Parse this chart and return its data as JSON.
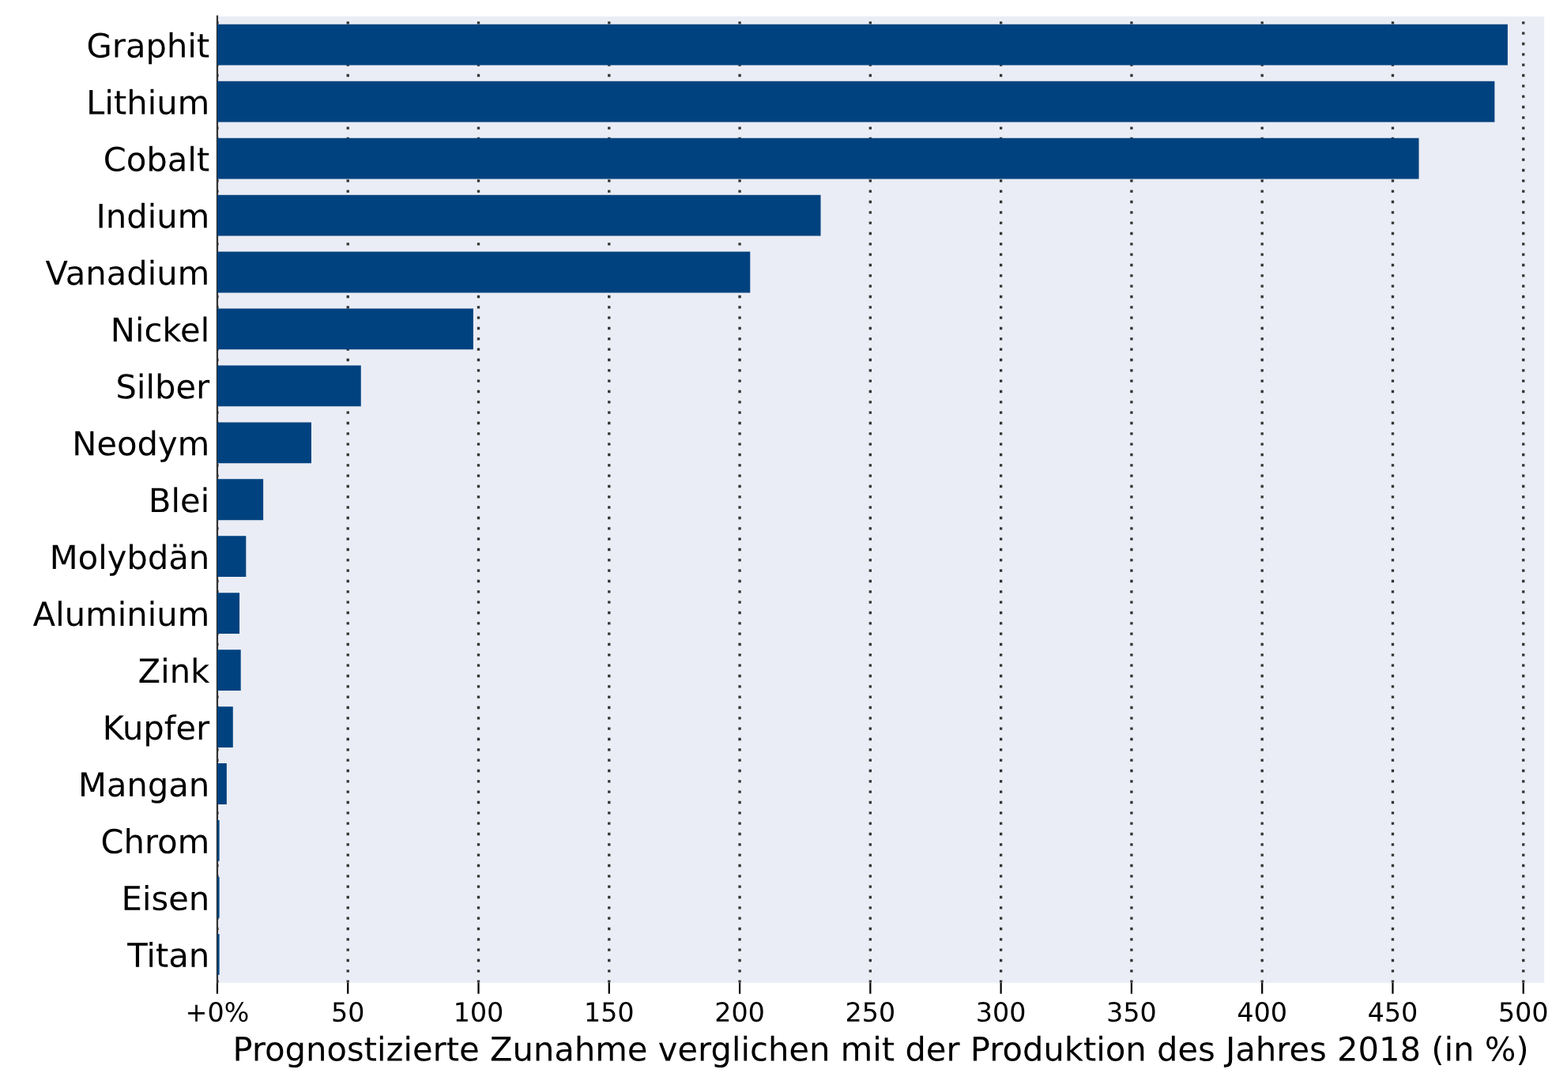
{
  "chart_data": {
    "type": "bar",
    "orientation": "horizontal",
    "xlabel": "Prognostizierte Zunahme verglichen mit der Produktion des Jahres 2018 (in %)",
    "categories": [
      "Graphit",
      "Lithium",
      "Cobalt",
      "Indium",
      "Vanadium",
      "Nickel",
      "Silber",
      "Neodym",
      "Blei",
      "Molybdän",
      "Aluminium",
      "Zink",
      "Kupfer",
      "Mangan",
      "Chrom",
      "Eisen",
      "Titan"
    ],
    "values": [
      494,
      489,
      460,
      231,
      204,
      98,
      55,
      36,
      17.6,
      11,
      8.5,
      9,
      6,
      3.6,
      0.8,
      0.8,
      0.8
    ],
    "color": "#00427f",
    "xlim": [
      0,
      508
    ],
    "xticks": [
      {
        "value": 0,
        "label": "+0%"
      },
      50,
      100,
      150,
      200,
      250,
      300,
      350,
      400,
      450,
      500
    ],
    "grid": "x"
  }
}
